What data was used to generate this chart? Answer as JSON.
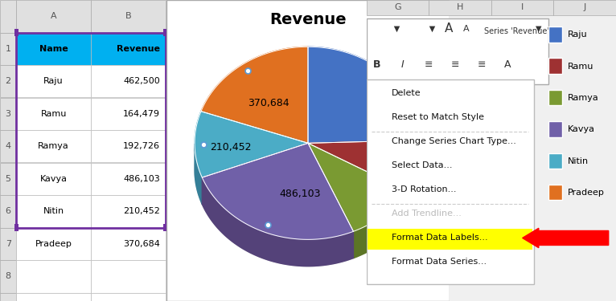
{
  "title": "Revenue",
  "names": [
    "Raju",
    "Ramu",
    "Ramya",
    "Kavya",
    "Nitin",
    "Pradeep"
  ],
  "values": [
    462500,
    164479,
    192726,
    486103,
    210452,
    370684
  ],
  "pie_colors": [
    "#4472C4",
    "#9E3132",
    "#7A9A32",
    "#7060A8",
    "#4BACC6",
    "#E07020"
  ],
  "pie_colors_dark": [
    "#2F5496",
    "#7B2525",
    "#5C7526",
    "#544279",
    "#357F98",
    "#B05818"
  ],
  "legend_labels": [
    "Raju",
    "Ramu",
    "Ramya",
    "Kavya",
    "Nitin",
    "Pradeep"
  ],
  "excel_bg": "#F0F0F0",
  "cell_bg": "#FFFFFF",
  "header_bg": "#00B0F0",
  "table_data": [
    [
      "Name",
      "Revenue"
    ],
    [
      "Raju",
      "462,500"
    ],
    [
      "Ramu",
      "164,479"
    ],
    [
      "Ramya",
      "192,726"
    ],
    [
      "Kavya",
      "486,103"
    ],
    [
      "Nitin",
      "210,452"
    ],
    [
      "Pradeep",
      "370,684"
    ]
  ],
  "context_menu_items": [
    "Delete",
    "Reset to Match Style",
    "Change Series Chart Type...",
    "Select Data...",
    "3-D Rotation...",
    "Add Trendline...",
    "Format Data Labels...",
    "Format Data Series..."
  ],
  "highlighted_item": "Format Data Labels...",
  "grayed_item": "Add Trendline...",
  "separator_after": [
    "Reset to Match Style",
    "3-D Rotation..."
  ],
  "toolbar_text": "Series 'Revenue'",
  "col_letters": [
    "",
    "A",
    "B"
  ],
  "row_header_letters": [
    "G",
    "H",
    "I",
    "J"
  ],
  "label_info": {
    "Pradeep": [
      "370,684",
      -0.42,
      0.38
    ],
    "Nitin": [
      "210,452",
      -0.82,
      0.05
    ],
    "Kavya": [
      "486,103",
      -0.08,
      -0.3
    ]
  }
}
